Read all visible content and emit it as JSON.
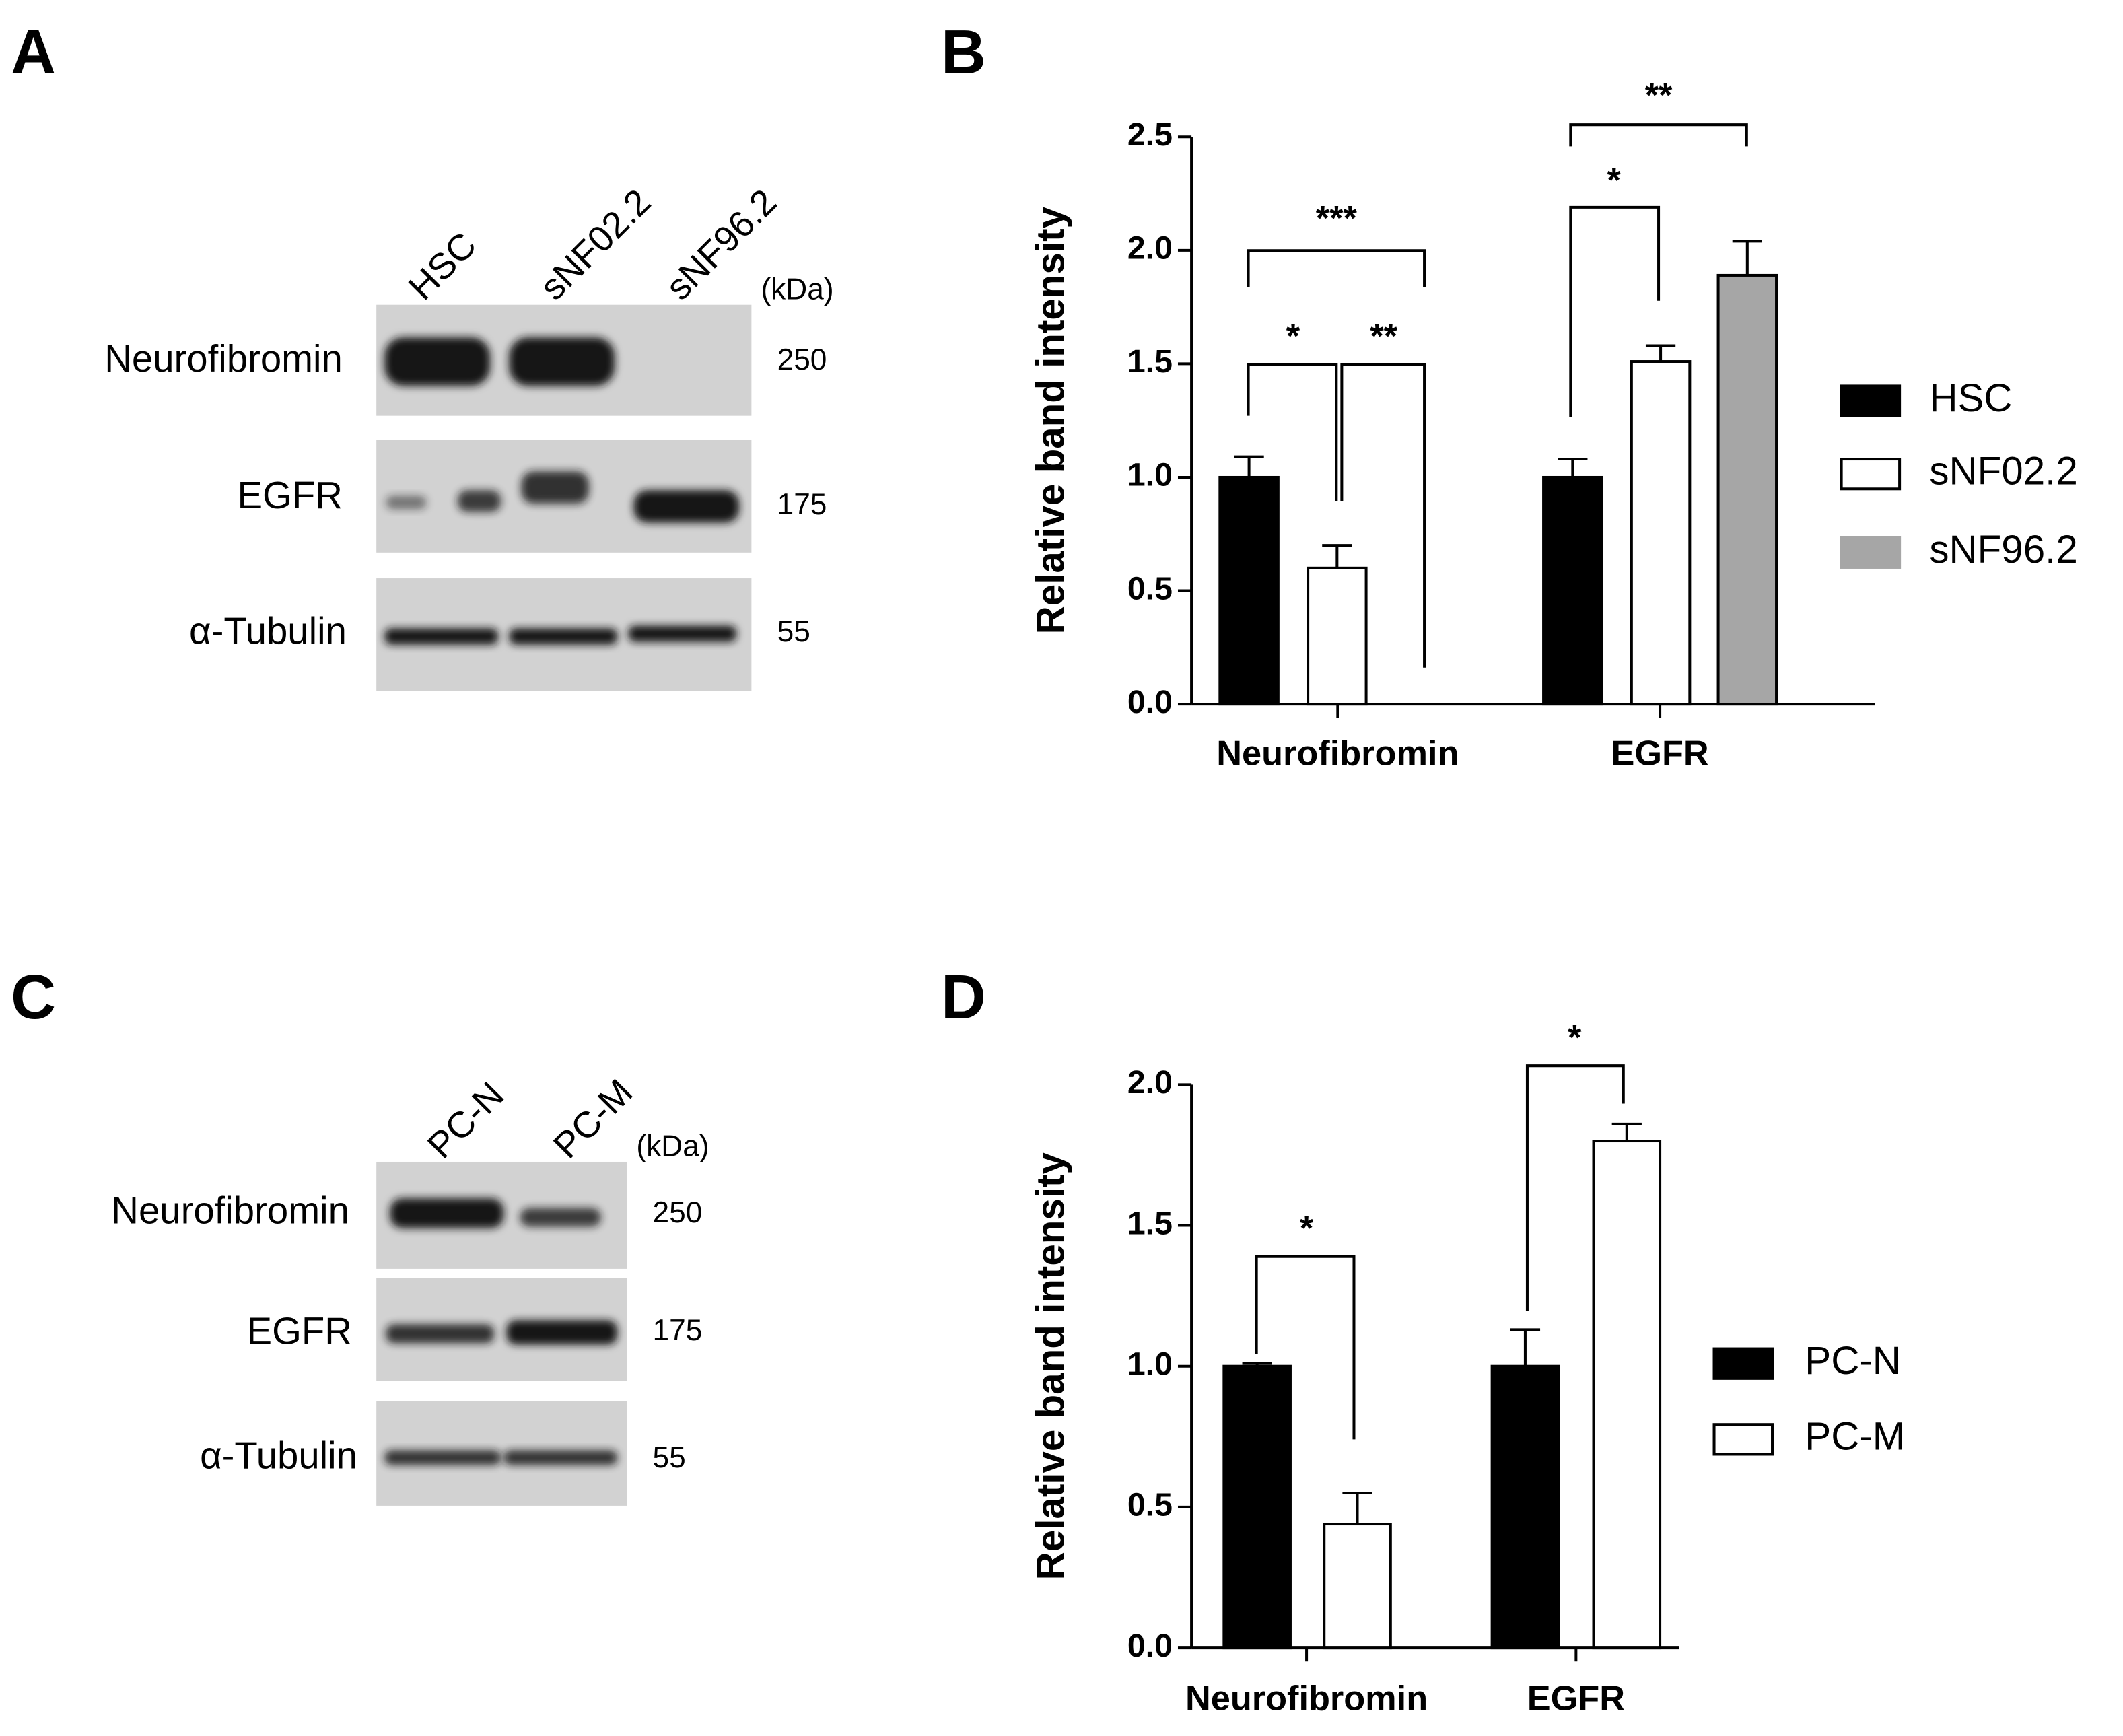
{
  "panel_labels": [
    "A",
    "B",
    "C",
    "D"
  ],
  "blots": [
    {
      "lanes": [
        "HSC",
        "sNF02.2",
        "sNF96.2"
      ],
      "unit": "(kDa)",
      "rows": [
        {
          "label": "Neurofibromin",
          "kda": 250
        },
        {
          "label": "EGFR",
          "kda": 175
        },
        {
          "label": "α-Tubulin",
          "kda": 55
        }
      ]
    },
    {
      "lanes": [
        "PC-N",
        "PC-M"
      ],
      "unit": "(kDa)",
      "rows": [
        {
          "label": "Neurofibromin",
          "kda": 250
        },
        {
          "label": "EGFR",
          "kda": 175
        },
        {
          "label": "α-Tubulin",
          "kda": 55
        }
      ]
    }
  ],
  "chart_data": [
    {
      "type": "bar",
      "y_label": "Relative band intensity",
      "categories": [
        "Neurofibromin",
        "EGFR"
      ],
      "series": [
        {
          "name": "HSC",
          "color": "#000000",
          "values": [
            1.0,
            1.0
          ],
          "errors": [
            0.09,
            0.08
          ]
        },
        {
          "name": "sNF02.2",
          "color": "#ffffff",
          "values": [
            0.6,
            1.51
          ],
          "errors": [
            0.1,
            0.07
          ]
        },
        {
          "name": "sNF96.2",
          "color": "#a6a6a6",
          "values": [
            0,
            1.89
          ],
          "errors": [
            0,
            0.15
          ]
        }
      ],
      "ylim": [
        0,
        2.5
      ],
      "yticks": [
        {
          "value": 0,
          "label": "0.0"
        },
        {
          "value": 0.5,
          "label": "0.5"
        },
        {
          "value": 1,
          "label": "1.0"
        },
        {
          "value": 1.5,
          "label": "1.5"
        },
        {
          "value": 2,
          "label": "2.0"
        },
        {
          "value": 2.5,
          "label": "2.5"
        }
      ],
      "annotations": [
        "***",
        "*",
        "**",
        "*",
        "**"
      ]
    },
    {
      "type": "bar",
      "y_label": "Relative band intensity",
      "categories": [
        "Neurofibromin",
        "EGFR"
      ],
      "series": [
        {
          "name": "PC-N",
          "color": "#000000",
          "values": [
            1.0,
            1.0
          ],
          "errors": [
            0.01,
            0.13
          ]
        },
        {
          "name": "PC-M",
          "color": "#ffffff",
          "values": [
            0.44,
            1.8
          ],
          "errors": [
            0.11,
            0.06
          ]
        }
      ],
      "ylim": [
        0,
        2.0
      ],
      "yticks": [
        {
          "value": 0,
          "label": "0.0"
        },
        {
          "value": 0.5,
          "label": "0.5"
        },
        {
          "value": 1,
          "label": "1.0"
        },
        {
          "value": 1.5,
          "label": "1.5"
        },
        {
          "value": 2,
          "label": "2.0"
        }
      ],
      "annotations": [
        "*",
        "*"
      ]
    }
  ]
}
